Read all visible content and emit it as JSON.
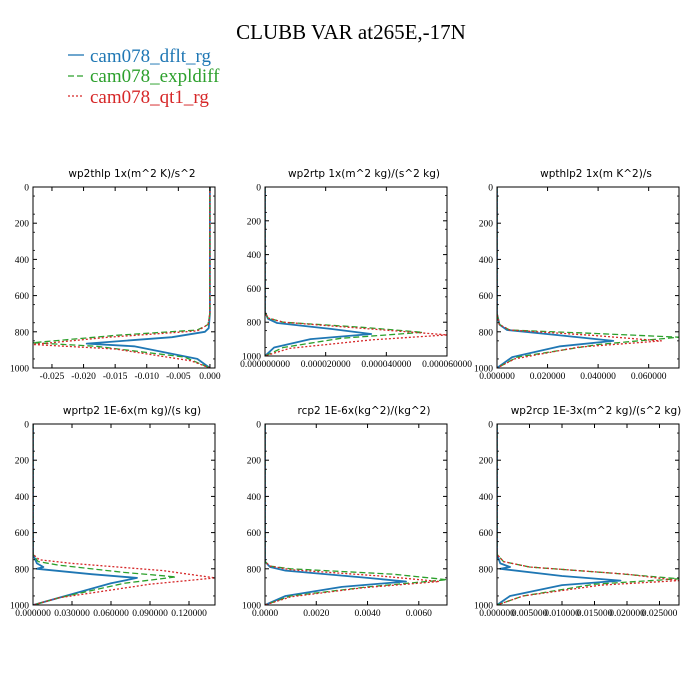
{
  "title": "CLUBB VAR at265E,-17N",
  "legend": [
    {
      "label": "cam078_dflt_rg",
      "color": "#1f77b4",
      "dash": "solid"
    },
    {
      "label": "cam078_expldiff",
      "color": "#2ca02c",
      "dash": "dashed"
    },
    {
      "label": "cam078_qt1_rg",
      "color": "#d62728",
      "dash": "dotted"
    }
  ],
  "chart_data": [
    {
      "type": "line",
      "title": "wp2thlp   1x(m^2 K)/s^2",
      "xlim": [
        -0.028,
        0.0008
      ],
      "ylim": [
        1000,
        0
      ],
      "xticks": [
        -0.025,
        -0.02,
        -0.015,
        -0.01,
        -0.005,
        0.0
      ],
      "xticklabels": [
        "-0.025",
        "-0.020",
        "-0.015",
        "-0.010",
        "-0.005",
        "0.000"
      ],
      "yticks": [
        0,
        200,
        400,
        600,
        800,
        1000
      ],
      "yticklabels": [
        "0",
        "200",
        "400",
        "600",
        "800",
        "1000"
      ],
      "series": [
        {
          "name": "cam078_dflt_rg",
          "x": [
            0.0,
            0.0,
            -0.0002,
            -0.0008,
            -0.006,
            -0.0195,
            -0.012,
            -0.002,
            0.0
          ],
          "y": [
            0,
            700,
            780,
            800,
            830,
            865,
            880,
            950,
            1000
          ]
        },
        {
          "name": "cam078_expldiff",
          "x": [
            0.0,
            0.0,
            -0.0003,
            -0.002,
            -0.015,
            -0.028,
            -0.018,
            -0.004,
            0.0
          ],
          "y": [
            0,
            700,
            760,
            790,
            820,
            860,
            880,
            940,
            1000
          ]
        },
        {
          "name": "cam078_qt1_rg",
          "x": [
            0.0,
            0.0,
            -0.0003,
            -0.002,
            -0.016,
            -0.028,
            -0.015,
            -0.003,
            0.0
          ],
          "y": [
            0,
            700,
            760,
            795,
            830,
            870,
            895,
            960,
            1000
          ]
        }
      ]
    },
    {
      "type": "line",
      "title": "wp2rtp   1x(m^2 kg)/(s^2 kg)",
      "xlim": [
        0,
        6e-05
      ],
      "ylim": [
        1000,
        0
      ],
      "xticks": [
        0.0,
        2e-05,
        4e-05,
        6e-05
      ],
      "xticklabels": [
        "0.000000000",
        "0.000020000",
        "0.000040000",
        "0.000060000"
      ],
      "yticks": [
        0,
        200,
        400,
        600,
        800,
        1000
      ],
      "yticklabels": [
        "0",
        "200",
        "400",
        "600",
        "800",
        "1000"
      ],
      "series": [
        {
          "name": "cam078_dflt_rg",
          "x": [
            0.0,
            0.0,
            1e-06,
            4e-06,
            2.2e-05,
            3.5e-05,
            1.5e-05,
            3e-06,
            0.0
          ],
          "y": [
            0,
            740,
            780,
            805,
            840,
            870,
            900,
            950,
            1000
          ]
        },
        {
          "name": "cam078_expldiff",
          "x": [
            0.0,
            0.0,
            1e-06,
            6e-06,
            3.2e-05,
            5.2e-05,
            2.5e-05,
            6e-06,
            0.0
          ],
          "y": [
            0,
            740,
            775,
            800,
            830,
            860,
            895,
            950,
            1000
          ]
        },
        {
          "name": "cam078_qt1_rg",
          "x": [
            0.0,
            0.0,
            1e-06,
            6e-06,
            3.5e-05,
            6e-05,
            3.5e-05,
            8e-06,
            0.0
          ],
          "y": [
            0,
            740,
            775,
            800,
            840,
            875,
            905,
            955,
            1000
          ]
        }
      ]
    },
    {
      "type": "line",
      "title": "wpthlp2   1x(m K^2)/s",
      "xlim": [
        0,
        0.072
      ],
      "ylim": [
        1000,
        0
      ],
      "xticks": [
        0.0,
        0.02,
        0.04,
        0.06
      ],
      "xticklabels": [
        "0.000000",
        "0.020000",
        "0.040000",
        "0.060000"
      ],
      "yticks": [
        0,
        200,
        400,
        600,
        800,
        1000
      ],
      "yticklabels": [
        "0",
        "200",
        "400",
        "600",
        "800",
        "1000"
      ],
      "series": [
        {
          "name": "cam078_dflt_rg",
          "x": [
            0.0,
            0.0,
            0.001,
            0.004,
            0.025,
            0.046,
            0.025,
            0.006,
            0.0
          ],
          "y": [
            0,
            700,
            760,
            790,
            820,
            850,
            880,
            940,
            1000
          ]
        },
        {
          "name": "cam078_expldiff",
          "x": [
            0.0,
            0.0,
            0.001,
            0.005,
            0.04,
            0.072,
            0.04,
            0.008,
            0.0
          ],
          "y": [
            0,
            700,
            760,
            790,
            810,
            830,
            870,
            940,
            1000
          ]
        },
        {
          "name": "cam078_qt1_rg",
          "x": [
            0.0,
            0.0,
            0.001,
            0.005,
            0.038,
            0.065,
            0.032,
            0.007,
            0.0
          ],
          "y": [
            0,
            700,
            760,
            790,
            820,
            850,
            885,
            950,
            1000
          ]
        }
      ]
    },
    {
      "type": "line",
      "title": "wprtp2   1E-6x(m kg)/(s kg)",
      "xlim": [
        0,
        0.14
      ],
      "ylim": [
        1000,
        0
      ],
      "xticks": [
        0.0,
        0.03,
        0.06,
        0.09,
        0.12
      ],
      "xticklabels": [
        "0.000000",
        "0.030000",
        "0.060000",
        "0.090000",
        "0.120000"
      ],
      "yticks": [
        0,
        200,
        400,
        600,
        800,
        1000
      ],
      "yticklabels": [
        "0",
        "200",
        "400",
        "600",
        "800",
        "1000"
      ],
      "series": [
        {
          "name": "cam078_dflt_rg",
          "x": [
            0.0,
            0.0,
            0.003,
            0.008,
            0.003,
            0.045,
            0.08,
            0.06,
            0.02,
            0.0
          ],
          "y": [
            0,
            720,
            770,
            790,
            800,
            830,
            850,
            880,
            960,
            1000
          ]
        },
        {
          "name": "cam078_expldiff",
          "x": [
            0.0,
            0.0,
            0.004,
            0.02,
            0.07,
            0.11,
            0.07,
            0.02,
            0.0
          ],
          "y": [
            0,
            720,
            760,
            780,
            820,
            845,
            880,
            960,
            1000
          ]
        },
        {
          "name": "cam078_qt1_rg",
          "x": [
            0.0,
            0.0,
            0.005,
            0.03,
            0.1,
            0.14,
            0.09,
            0.02,
            0.0
          ],
          "y": [
            0,
            720,
            750,
            770,
            810,
            850,
            885,
            960,
            1000
          ]
        }
      ]
    },
    {
      "type": "line",
      "title": "rcp2   1E-6x(kg^2)/(kg^2)",
      "xlim": [
        0,
        0.0071
      ],
      "ylim": [
        1000,
        0
      ],
      "xticks": [
        0.0,
        0.002,
        0.004,
        0.006
      ],
      "xticklabels": [
        "0.0000",
        "0.0020",
        "0.0040",
        "0.0060"
      ],
      "yticks": [
        0,
        200,
        400,
        600,
        800,
        1000
      ],
      "yticklabels": [
        "0",
        "200",
        "400",
        "600",
        "800",
        "1000"
      ],
      "series": [
        {
          "name": "cam078_dflt_rg",
          "x": [
            0.0,
            0.0,
            0.0002,
            0.0008,
            0.004,
            0.0055,
            0.003,
            0.0008,
            0.0
          ],
          "y": [
            0,
            760,
            790,
            810,
            850,
            870,
            900,
            950,
            1000
          ]
        },
        {
          "name": "cam078_expldiff",
          "x": [
            0.0,
            0.0,
            0.0002,
            0.001,
            0.005,
            0.0071,
            0.004,
            0.001,
            0.0
          ],
          "y": [
            0,
            760,
            785,
            800,
            830,
            860,
            900,
            950,
            1000
          ]
        },
        {
          "name": "cam078_qt1_rg",
          "x": [
            0.0,
            0.0,
            0.0002,
            0.001,
            0.0045,
            0.0068,
            0.0038,
            0.001,
            0.0
          ],
          "y": [
            0,
            760,
            785,
            805,
            840,
            870,
            905,
            955,
            1000
          ]
        }
      ]
    },
    {
      "type": "line",
      "title": "wp2rcp   1E-3x(m^2 kg)/(s^2 kg)",
      "xlim": [
        0,
        0.028
      ],
      "ylim": [
        1000,
        0
      ],
      "xticks": [
        0.0,
        0.005,
        0.01,
        0.015,
        0.02,
        0.025
      ],
      "xticklabels": [
        "0.000000",
        "0.005000",
        "0.010000",
        "0.015000",
        "0.020000",
        "0.025000"
      ],
      "yticks": [
        0,
        200,
        400,
        600,
        800,
        1000
      ],
      "yticklabels": [
        "0",
        "200",
        "400",
        "600",
        "800",
        "1000"
      ],
      "series": [
        {
          "name": "cam078_dflt_rg",
          "x": [
            0.0,
            0.0,
            0.0005,
            0.002,
            0.0005,
            0.01,
            0.019,
            0.01,
            0.002,
            0.0
          ],
          "y": [
            0,
            720,
            770,
            790,
            800,
            840,
            865,
            890,
            950,
            1000
          ]
        },
        {
          "name": "cam078_expldiff",
          "x": [
            0.0,
            0.0,
            0.001,
            0.005,
            0.018,
            0.028,
            0.015,
            0.004,
            0.0
          ],
          "y": [
            0,
            720,
            760,
            790,
            825,
            855,
            885,
            950,
            1000
          ]
        },
        {
          "name": "cam078_qt1_rg",
          "x": [
            0.0,
            0.0,
            0.001,
            0.005,
            0.02,
            0.028,
            0.016,
            0.004,
            0.0
          ],
          "y": [
            0,
            720,
            760,
            790,
            830,
            865,
            890,
            950,
            1000
          ]
        }
      ]
    }
  ]
}
